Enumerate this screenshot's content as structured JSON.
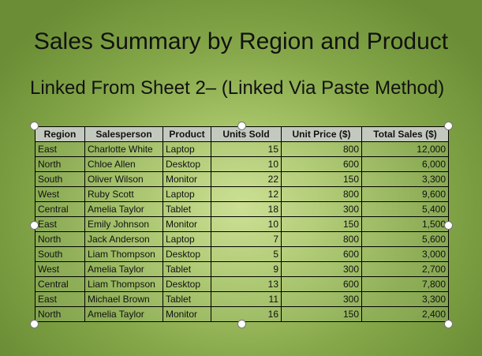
{
  "slide": {
    "title": "Sales Summary by Region and Product",
    "subtitle": "Linked From Sheet 2– (Linked Via Paste Method)"
  },
  "table": {
    "headers": [
      "Region",
      "Salesperson",
      "Product",
      "Units Sold",
      "Unit Price ($)",
      "Total Sales ($)"
    ],
    "rows": [
      [
        "East",
        "Charlotte White",
        "Laptop",
        "15",
        "800",
        "12,000"
      ],
      [
        "North",
        "Chloe Allen",
        "Desktop",
        "10",
        "600",
        "6,000"
      ],
      [
        "South",
        "Oliver Wilson",
        "Monitor",
        "22",
        "150",
        "3,300"
      ],
      [
        "West",
        "Ruby Scott",
        "Laptop",
        "12",
        "800",
        "9,600"
      ],
      [
        "Central",
        "Amelia Taylor",
        "Tablet",
        "18",
        "300",
        "5,400"
      ],
      [
        "East",
        "Emily Johnson",
        "Monitor",
        "10",
        "150",
        "1,500"
      ],
      [
        "North",
        "Jack Anderson",
        "Laptop",
        "7",
        "800",
        "5,600"
      ],
      [
        "South",
        "Liam Thompson",
        "Desktop",
        "5",
        "600",
        "3,000"
      ],
      [
        "West",
        "Amelia Taylor",
        "Tablet",
        "9",
        "300",
        "2,700"
      ],
      [
        "Central",
        "Liam Thompson",
        "Desktop",
        "13",
        "600",
        "7,800"
      ],
      [
        "East",
        "Michael Brown",
        "Tablet",
        "11",
        "300",
        "3,300"
      ],
      [
        "North",
        "Amelia Taylor",
        "Monitor",
        "16",
        "150",
        "2,400"
      ]
    ]
  },
  "colors": {
    "background_center": "#c9de8c",
    "background_edge": "#6a8d35",
    "header_fill": "#c4c9c0"
  }
}
